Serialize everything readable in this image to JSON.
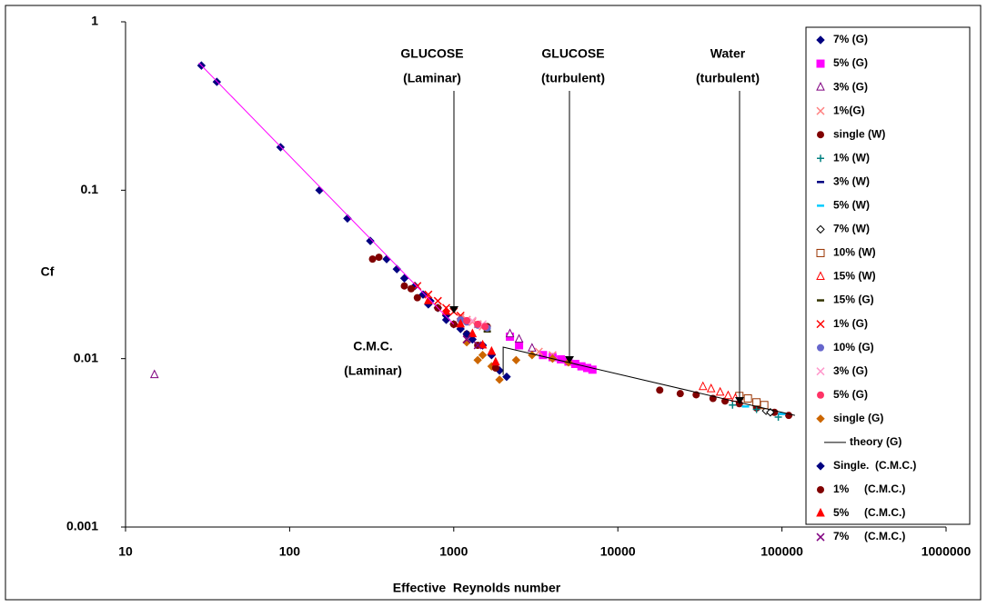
{
  "chart_data": {
    "type": "scatter",
    "log_x": true,
    "log_y": true,
    "x_label": "Effective  Reynolds number",
    "y_label": "Cf",
    "xlim": [
      10,
      1000000
    ],
    "ylim": [
      0.001,
      1
    ],
    "xticks": [
      10,
      100,
      1000,
      10000,
      100000,
      1000000
    ],
    "yticks": [
      0.001,
      0.01,
      0.1,
      1
    ],
    "annotations": [
      [
        "GLUCOSE",
        "(Laminar)"
      ],
      [
        "GLUCOSE",
        "(turbulent)"
      ],
      [
        "Water",
        "(turbulent)"
      ],
      [
        "C.M.C.",
        "(Laminar)"
      ]
    ],
    "series": [
      {
        "name": "7% (G)",
        "color": "#000080",
        "marker": "diamond",
        "x": [
          29,
          36,
          88,
          152,
          225,
          310,
          390,
          450,
          500,
          580,
          650,
          720,
          800,
          900,
          1000,
          1100,
          1300,
          1500,
          1700,
          1900,
          2100
        ],
        "values": [
          0.55,
          0.44,
          0.18,
          0.1,
          0.068,
          0.05,
          0.039,
          0.034,
          0.03,
          0.027,
          0.024,
          0.022,
          0.02,
          0.018,
          0.016,
          0.015,
          0.013,
          0.012,
          0.0105,
          0.0085,
          0.0078
        ]
      },
      {
        "name": "5% (G)",
        "color": "#ff00ff",
        "marker": "square",
        "x": [
          2200,
          2500,
          3500,
          4000,
          4500,
          5000,
          5500,
          6000,
          6500,
          7000
        ],
        "values": [
          0.0135,
          0.012,
          0.0105,
          0.0102,
          0.0099,
          0.0096,
          0.0093,
          0.009,
          0.0088,
          0.0086
        ]
      },
      {
        "name": "3% (G)",
        "color": "#800080",
        "marker": "triangle-open",
        "x": [
          15,
          2200,
          2500,
          3000
        ],
        "values": [
          0.008,
          0.014,
          0.013,
          0.0115
        ]
      },
      {
        "name": "1%(G)",
        "color": "#ff8080",
        "marker": "x",
        "x": [
          1100,
          1200,
          1300,
          1400,
          1500,
          3300,
          4000
        ],
        "values": [
          0.0175,
          0.017,
          0.0165,
          0.016,
          0.0155,
          0.011,
          0.0105
        ]
      },
      {
        "name": "single (W)",
        "color": "#800000",
        "marker": "circle",
        "x": [
          350,
          500,
          600,
          800,
          1000,
          1200,
          1600,
          1800,
          18000,
          24000,
          30000,
          38000,
          45000,
          55000,
          70000,
          90000,
          110000
        ],
        "values": [
          0.04,
          0.027,
          0.023,
          0.02,
          0.016,
          0.014,
          0.0155,
          0.0088,
          0.0065,
          0.0062,
          0.0061,
          0.0058,
          0.0056,
          0.0054,
          0.0051,
          0.0048,
          0.0046
        ]
      },
      {
        "name": "1% (W)",
        "color": "#008080",
        "marker": "plus",
        "x": [
          50000,
          70000,
          95000
        ],
        "values": [
          0.0053,
          0.005,
          0.0045
        ]
      },
      {
        "name": "3% (W)",
        "color": "#000080",
        "marker": "dash",
        "x": [
          100000
        ],
        "values": [
          0.0047
        ]
      },
      {
        "name": "5% (W)",
        "color": "#00ccff",
        "marker": "dash",
        "x": [
          60000,
          100000
        ],
        "values": [
          0.0052,
          0.0047
        ]
      },
      {
        "name": "7% (W)",
        "color": "#000000",
        "marker": "diamond-open",
        "x": [
          80000,
          85000
        ],
        "values": [
          0.0049,
          0.0048
        ]
      },
      {
        "name": "10% (W)",
        "color": "#993300",
        "marker": "square-open",
        "x": [
          55000,
          62000,
          70000,
          78000
        ],
        "values": [
          0.006,
          0.0058,
          0.0055,
          0.0053
        ]
      },
      {
        "name": "15% (W)",
        "color": "#ff0000",
        "marker": "triangle-open",
        "x": [
          33000,
          37000,
          42000,
          47000,
          52000
        ],
        "values": [
          0.0068,
          0.0066,
          0.0063,
          0.006,
          0.0058
        ]
      },
      {
        "name": "15% (G)",
        "color": "#333300",
        "marker": "dash",
        "x": [
          1600
        ],
        "values": [
          0.0145
        ]
      },
      {
        "name": "1% (G)",
        "color": "#ff0000",
        "marker": "x",
        "x": [
          600,
          700,
          800,
          900,
          1000,
          1100
        ],
        "values": [
          0.027,
          0.024,
          0.022,
          0.02,
          0.019,
          0.018
        ]
      },
      {
        "name": "10% (G)",
        "color": "#6666cc",
        "marker": "circle",
        "x": [
          1100,
          1200,
          1400,
          1600
        ],
        "values": [
          0.017,
          0.0165,
          0.0158,
          0.0152
        ]
      },
      {
        "name": "3% (G)",
        "color": "#ff99cc",
        "marker": "x",
        "x": [
          1300,
          1500
        ],
        "values": [
          0.0168,
          0.016
        ]
      },
      {
        "name": "5% (G)",
        "color": "#ff3366",
        "marker": "circle",
        "x": [
          1200,
          1400,
          1550
        ],
        "values": [
          0.0168,
          0.016,
          0.0155
        ]
      },
      {
        "name": "single (G)",
        "color": "#cc6600",
        "marker": "diamond",
        "x": [
          1200,
          1400,
          1500,
          1700,
          1900,
          2400,
          3000,
          4000,
          5000
        ],
        "values": [
          0.0125,
          0.0098,
          0.0105,
          0.009,
          0.0075,
          0.0098,
          0.0105,
          0.01,
          0.0095
        ]
      },
      {
        "name": "theory (G)",
        "color": "#000000",
        "marker": "line",
        "x": [
          2000,
          2000,
          120000
        ],
        "values": [
          0.008,
          0.0117,
          0.0046
        ]
      },
      {
        "name": "Single.  (C.M.C.)",
        "color": "#000080",
        "marker": "diamond",
        "x": [
          700,
          900,
          1200,
          1500
        ],
        "values": [
          0.021,
          0.017,
          0.014,
          0.012
        ]
      },
      {
        "name": "1%     (C.M.C.)",
        "color": "#800000",
        "marker": "circle",
        "x": [
          320,
          550,
          1000,
          1400,
          1800
        ],
        "values": [
          0.039,
          0.026,
          0.016,
          0.012,
          0.0088
        ]
      },
      {
        "name": "5%     (C.M.C.)",
        "color": "#ff0000",
        "marker": "triangle",
        "x": [
          700,
          900,
          1100,
          1300,
          1500,
          1700,
          1800
        ],
        "values": [
          0.022,
          0.019,
          0.016,
          0.014,
          0.012,
          0.011,
          0.0095
        ]
      },
      {
        "name": "7%     (C.M.C.)",
        "color": "#800080",
        "marker": "x",
        "x": [
          1200,
          1400
        ],
        "values": [
          0.013,
          0.012
        ]
      },
      {
        "color": "#ff00ff",
        "marker": "line",
        "x": [
          28,
          1000
        ],
        "values": [
          0.57,
          0.016
        ]
      }
    ]
  }
}
